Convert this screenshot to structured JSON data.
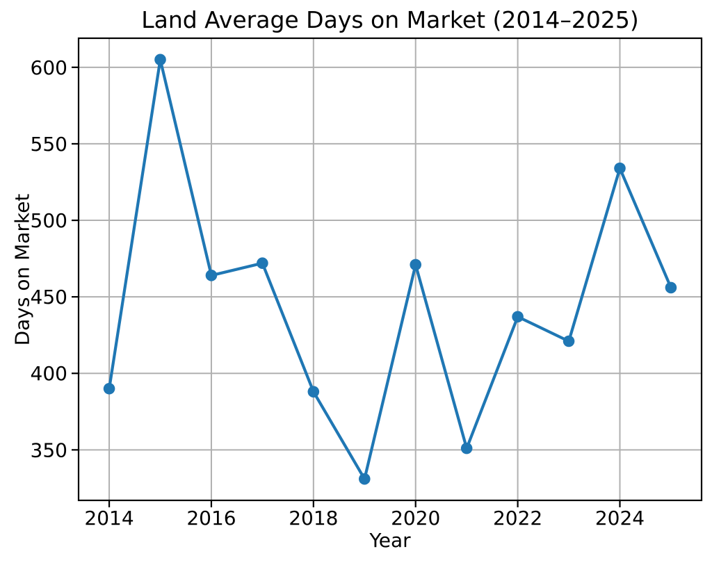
{
  "page": {
    "background": "#ffffff"
  },
  "chart_data": {
    "type": "line",
    "title": "Land Average Days on Market (2014–2025)",
    "xlabel": "Year",
    "ylabel": "Days on Market",
    "x": [
      2014,
      2015,
      2016,
      2017,
      2018,
      2019,
      2020,
      2021,
      2022,
      2023,
      2024,
      2025
    ],
    "y": [
      390,
      605,
      464,
      472,
      388,
      331,
      471,
      351,
      437,
      421,
      534,
      456
    ],
    "x_tick_values": [
      2014,
      2016,
      2018,
      2020,
      2022,
      2024
    ],
    "x_tick_labels": [
      "2014",
      "2016",
      "2018",
      "2020",
      "2022",
      "2024"
    ],
    "y_tick_values": [
      350,
      400,
      450,
      500,
      550,
      600
    ],
    "y_tick_labels": [
      "350",
      "400",
      "450",
      "500",
      "550",
      "600"
    ],
    "xlim": [
      2013.4,
      2025.6
    ],
    "ylim": [
      317,
      619
    ],
    "grid": true,
    "legend": "none",
    "line_color": "#1f77b4",
    "marker_color": "#1f77b4",
    "grid_color": "#b0b0b0",
    "spine_color": "#000000",
    "tick_color": "#000000",
    "text_color": "#000000"
  }
}
